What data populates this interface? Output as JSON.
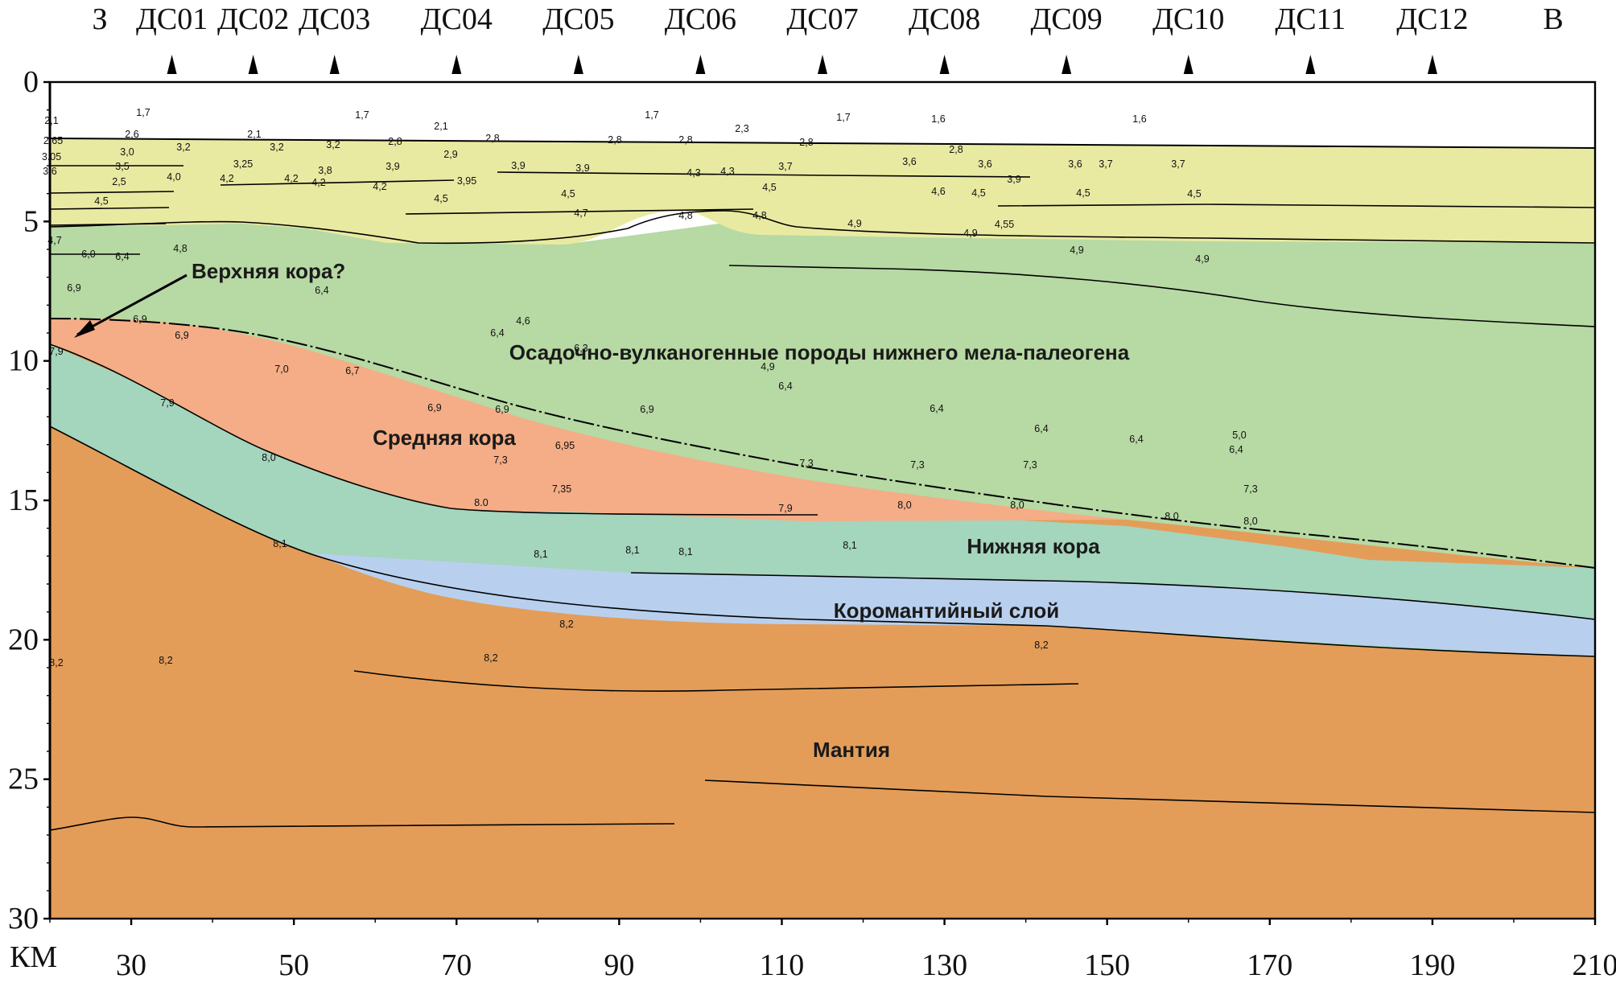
{
  "header": {
    "west": "З",
    "east": "В",
    "stations": [
      {
        "label": "ДС01",
        "x_km": 35
      },
      {
        "label": "ДС02",
        "x_km": 45
      },
      {
        "label": "ДС03",
        "x_km": 55
      },
      {
        "label": "ДС04",
        "x_km": 70
      },
      {
        "label": "ДС05",
        "x_km": 85
      },
      {
        "label": "ДС06",
        "x_km": 100
      },
      {
        "label": "ДС07",
        "x_km": 115
      },
      {
        "label": "ДС08",
        "x_km": 130
      },
      {
        "label": "ДС09",
        "x_km": 145
      },
      {
        "label": "ДС10",
        "x_km": 160
      },
      {
        "label": "ДС11",
        "x_km": 175
      },
      {
        "label": "ДС12",
        "x_km": 190
      }
    ]
  },
  "axes": {
    "x_unit": "КМ",
    "x_ticks": [
      "30",
      "50",
      "70",
      "90",
      "110",
      "130",
      "150",
      "170",
      "190",
      "210"
    ],
    "y_ticks": [
      "0",
      "5",
      "10",
      "15",
      "20",
      "25",
      "30"
    ],
    "x_range_km": [
      20,
      210
    ],
    "y_range_km": [
      0,
      30
    ]
  },
  "layers": {
    "upper_crust": "Верхняя кора?",
    "sediments": "Осадочно-вулканогенные породы нижнего мела-палеогена",
    "middle_crust": "Средняя кора",
    "lower_crust": "Нижняя кора",
    "crust_mantle": "Коромантийный слой",
    "mantle": "Мантия"
  },
  "colors": {
    "cover": "#e9eaa2",
    "sediments": "#b7d9a4",
    "middle_crust": "#f4ad86",
    "lower_crust": "#a4d5bd",
    "crust_mantle": "#b8d0ee",
    "mantle": "#e39d58"
  },
  "velocities": [
    {
      "v": "1,7",
      "x": 178,
      "y": 144
    },
    {
      "v": "2,1",
      "x": 64,
      "y": 154
    },
    {
      "v": "2,6",
      "x": 164,
      "y": 171
    },
    {
      "v": "2,65",
      "x": 66,
      "y": 179
    },
    {
      "v": "3,0",
      "x": 158,
      "y": 193
    },
    {
      "v": "3.05",
      "x": 64,
      "y": 199
    },
    {
      "v": "3,5",
      "x": 152,
      "y": 211
    },
    {
      "v": "3.6",
      "x": 62,
      "y": 217
    },
    {
      "v": "2,5",
      "x": 148,
      "y": 230
    },
    {
      "v": "4,5",
      "x": 126,
      "y": 254
    },
    {
      "v": "4,0",
      "x": 216,
      "y": 224
    },
    {
      "v": "4,2",
      "x": 282,
      "y": 226
    },
    {
      "v": "3,25",
      "x": 302,
      "y": 208
    },
    {
      "v": "4,2",
      "x": 362,
      "y": 226
    },
    {
      "v": "3,2",
      "x": 228,
      "y": 187
    },
    {
      "v": "2,1",
      "x": 316,
      "y": 171
    },
    {
      "v": "3,2",
      "x": 344,
      "y": 187
    },
    {
      "v": "3,2",
      "x": 414,
      "y": 184
    },
    {
      "v": "1,7",
      "x": 450,
      "y": 147
    },
    {
      "v": "3,8",
      "x": 404,
      "y": 216
    },
    {
      "v": "4,2",
      "x": 396,
      "y": 231
    },
    {
      "v": "4,2",
      "x": 472,
      "y": 236
    },
    {
      "v": "2,1",
      "x": 548,
      "y": 161
    },
    {
      "v": "2,8",
      "x": 491,
      "y": 180
    },
    {
      "v": "2,8",
      "x": 612,
      "y": 176
    },
    {
      "v": "3,9",
      "x": 488,
      "y": 211
    },
    {
      "v": "2,9",
      "x": 560,
      "y": 196
    },
    {
      "v": "3,95",
      "x": 580,
      "y": 229
    },
    {
      "v": "3,9",
      "x": 644,
      "y": 210
    },
    {
      "v": "3,9",
      "x": 724,
      "y": 213
    },
    {
      "v": "4,5",
      "x": 548,
      "y": 251
    },
    {
      "v": "4,5",
      "x": 706,
      "y": 245
    },
    {
      "v": "4,7",
      "x": 722,
      "y": 269
    },
    {
      "v": "1,7",
      "x": 810,
      "y": 147
    },
    {
      "v": "2,8",
      "x": 764,
      "y": 178
    },
    {
      "v": "2,8",
      "x": 852,
      "y": 178
    },
    {
      "v": "2,3",
      "x": 922,
      "y": 164
    },
    {
      "v": "4,3",
      "x": 862,
      "y": 219
    },
    {
      "v": "4,3",
      "x": 904,
      "y": 217
    },
    {
      "v": "4,8",
      "x": 852,
      "y": 272
    },
    {
      "v": "4,8",
      "x": 944,
      "y": 272
    },
    {
      "v": "2,8",
      "x": 1002,
      "y": 181
    },
    {
      "v": "3,7",
      "x": 976,
      "y": 211
    },
    {
      "v": "4,5",
      "x": 956,
      "y": 237
    },
    {
      "v": "1,7",
      "x": 1048,
      "y": 150
    },
    {
      "v": "4,9",
      "x": 1062,
      "y": 282
    },
    {
      "v": "1,6",
      "x": 1166,
      "y": 152
    },
    {
      "v": "2,8",
      "x": 1188,
      "y": 190
    },
    {
      "v": "3,6",
      "x": 1130,
      "y": 205
    },
    {
      "v": "3,6",
      "x": 1224,
      "y": 208
    },
    {
      "v": "3,9",
      "x": 1260,
      "y": 227
    },
    {
      "v": "4,6",
      "x": 1166,
      "y": 242
    },
    {
      "v": "4,5",
      "x": 1216,
      "y": 244
    },
    {
      "v": "4,9",
      "x": 1206,
      "y": 294
    },
    {
      "v": "4,55",
      "x": 1248,
      "y": 283
    },
    {
      "v": "1,6",
      "x": 1416,
      "y": 152
    },
    {
      "v": "3,6",
      "x": 1336,
      "y": 208
    },
    {
      "v": "3,7",
      "x": 1374,
      "y": 208
    },
    {
      "v": "3,7",
      "x": 1464,
      "y": 208
    },
    {
      "v": "4,5",
      "x": 1346,
      "y": 244
    },
    {
      "v": "4,5",
      "x": 1484,
      "y": 245
    },
    {
      "v": "4,9",
      "x": 1338,
      "y": 315
    },
    {
      "v": "4,9",
      "x": 1494,
      "y": 326
    },
    {
      "v": "4,7",
      "x": 68,
      "y": 303
    },
    {
      "v": "6,0",
      "x": 110,
      "y": 320
    },
    {
      "v": "6,4",
      "x": 152,
      "y": 323
    },
    {
      "v": "4,8",
      "x": 224,
      "y": 313
    },
    {
      "v": "6,9",
      "x": 92,
      "y": 362
    },
    {
      "v": "6,9",
      "x": 174,
      "y": 401
    },
    {
      "v": "6,9",
      "x": 226,
      "y": 421
    },
    {
      "v": "6,4",
      "x": 400,
      "y": 365
    },
    {
      "v": "4,6",
      "x": 650,
      "y": 403
    },
    {
      "v": "6,4",
      "x": 618,
      "y": 418
    },
    {
      "v": "6,3",
      "x": 722,
      "y": 437
    },
    {
      "v": "7,0",
      "x": 350,
      "y": 463
    },
    {
      "v": "6,7",
      "x": 438,
      "y": 465
    },
    {
      "v": "4,9",
      "x": 954,
      "y": 460
    },
    {
      "v": "6,4",
      "x": 976,
      "y": 484
    },
    {
      "v": "7,9",
      "x": 70,
      "y": 441
    },
    {
      "v": "7,9",
      "x": 208,
      "y": 505
    },
    {
      "v": "6,9",
      "x": 540,
      "y": 511
    },
    {
      "v": "6,9",
      "x": 624,
      "y": 513
    },
    {
      "v": "6,9",
      "x": 804,
      "y": 513
    },
    {
      "v": "6,4",
      "x": 1164,
      "y": 512
    },
    {
      "v": "6,4",
      "x": 1294,
      "y": 537
    },
    {
      "v": "6,4",
      "x": 1412,
      "y": 550
    },
    {
      "v": "5,0",
      "x": 1540,
      "y": 545
    },
    {
      "v": "6,4",
      "x": 1536,
      "y": 563
    },
    {
      "v": "6,95",
      "x": 702,
      "y": 558
    },
    {
      "v": "7,3",
      "x": 622,
      "y": 576
    },
    {
      "v": "7,3",
      "x": 1002,
      "y": 580
    },
    {
      "v": "7,3",
      "x": 1140,
      "y": 582
    },
    {
      "v": "7,3",
      "x": 1280,
      "y": 582
    },
    {
      "v": "7,3",
      "x": 1554,
      "y": 612
    },
    {
      "v": "8,0",
      "x": 334,
      "y": 573
    },
    {
      "v": "7,35",
      "x": 698,
      "y": 612
    },
    {
      "v": "8.0",
      "x": 598,
      "y": 629
    },
    {
      "v": "7,9",
      "x": 976,
      "y": 636
    },
    {
      "v": "8,0",
      "x": 1124,
      "y": 632
    },
    {
      "v": "8,0",
      "x": 1264,
      "y": 632
    },
    {
      "v": "8,0",
      "x": 1456,
      "y": 646
    },
    {
      "v": "8,0",
      "x": 1554,
      "y": 652
    },
    {
      "v": "8,1",
      "x": 348,
      "y": 680
    },
    {
      "v": "8,1",
      "x": 672,
      "y": 693
    },
    {
      "v": "8,1",
      "x": 786,
      "y": 688
    },
    {
      "v": "8,1",
      "x": 852,
      "y": 690
    },
    {
      "v": "8,1",
      "x": 1056,
      "y": 682
    },
    {
      "v": "8,2",
      "x": 704,
      "y": 780
    },
    {
      "v": "8,2",
      "x": 1294,
      "y": 806
    },
    {
      "v": "8,2",
      "x": 70,
      "y": 828
    },
    {
      "v": "8,2",
      "x": 206,
      "y": 825
    },
    {
      "v": "8,2",
      "x": 610,
      "y": 822
    }
  ]
}
